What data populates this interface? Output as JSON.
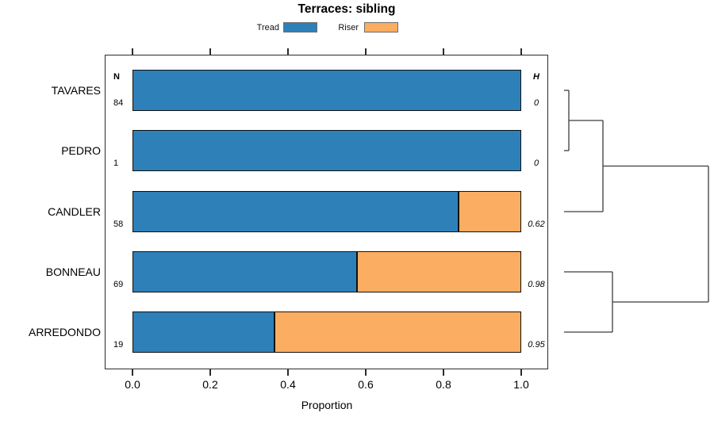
{
  "title": "Terraces: sibling",
  "legend": {
    "tread_label": "Tread",
    "riser_label": "Riser"
  },
  "colors": {
    "tread": "#2e80b9",
    "riser": "#fbad61",
    "bar_border": "#111111",
    "box_border": "#2b2b2b",
    "dendrogram_line": "#3c3c3c"
  },
  "columns": {
    "n_header": "N",
    "h_header": "H"
  },
  "axis": {
    "xlabel": "Proportion",
    "ticks": [
      "0.0",
      "0.2",
      "0.4",
      "0.6",
      "0.8",
      "1.0"
    ]
  },
  "chart_data": {
    "type": "bar",
    "orientation": "horizontal",
    "stacked": true,
    "title": "Terraces: sibling",
    "xlabel": "Proportion",
    "xlim": [
      0,
      1
    ],
    "x_ticks": [
      0.0,
      0.2,
      0.4,
      0.6,
      0.8,
      1.0
    ],
    "series": [
      "Tread",
      "Riser"
    ],
    "rows": [
      {
        "label": "TAVARES",
        "n": "84",
        "h": "0",
        "tread": 1.0,
        "riser": 0.0
      },
      {
        "label": "PEDRO",
        "n": "1",
        "h": "0",
        "tread": 1.0,
        "riser": 0.0
      },
      {
        "label": "CANDLER",
        "n": "58",
        "h": "0.62",
        "tread": 0.843,
        "riser": 0.157
      },
      {
        "label": "BONNEAU",
        "n": "69",
        "h": "0.98",
        "tread": 0.579,
        "riser": 0.421
      },
      {
        "label": "ARREDONDO",
        "n": "19",
        "h": "0.95",
        "tread": 0.367,
        "riser": 0.633
      }
    ],
    "dendrogram": {
      "structure": "((TAVARES,PEDRO),CANDLER) joined with (BONNEAU,ARREDONDO) at root",
      "segments": [
        [
          711,
          114,
          717,
          114
        ],
        [
          711,
          190,
          717,
          190
        ],
        [
          717,
          114,
          717,
          190
        ],
        [
          717,
          152,
          760,
          152
        ],
        [
          760,
          152,
          760,
          267
        ],
        [
          711,
          267,
          760,
          267
        ],
        [
          760,
          209.5,
          893,
          209.5
        ],
        [
          893,
          209.5,
          893,
          381
        ],
        [
          711,
          343,
          772,
          343
        ],
        [
          711,
          419,
          772,
          419
        ],
        [
          772,
          343,
          772,
          419
        ],
        [
          772,
          381,
          893,
          381
        ]
      ]
    }
  }
}
